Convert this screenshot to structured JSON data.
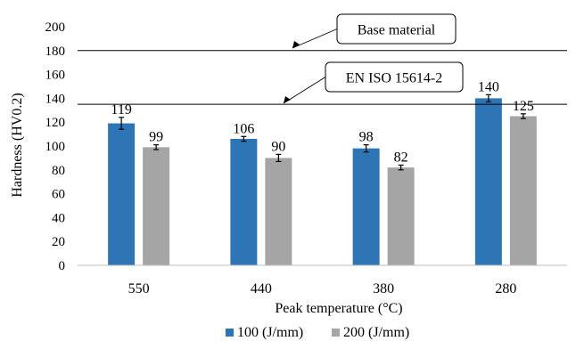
{
  "chart_data": {
    "type": "bar",
    "xlabel": "Peak temperature (°C)",
    "ylabel": "Hardness (HV0.2)",
    "ylim": [
      0,
      200
    ],
    "yticks": [
      0,
      20,
      40,
      60,
      80,
      100,
      120,
      140,
      160,
      180,
      200
    ],
    "grid": false,
    "legend_position": "bottom",
    "categories": [
      "550",
      "440",
      "380",
      "280"
    ],
    "series": [
      {
        "name": "100 (J/mm)",
        "color": "#2e75b6",
        "values": [
          119,
          106,
          98,
          140
        ],
        "errors": [
          5,
          2,
          3,
          3
        ]
      },
      {
        "name": "200 (J/mm)",
        "color": "#a5a5a5",
        "values": [
          99,
          90,
          82,
          125
        ],
        "errors": [
          2,
          3,
          2,
          2
        ]
      }
    ],
    "reference_lines": [
      {
        "label": "Base material",
        "value": 180
      },
      {
        "label": "EN ISO 15614-2",
        "value": 135
      }
    ]
  }
}
